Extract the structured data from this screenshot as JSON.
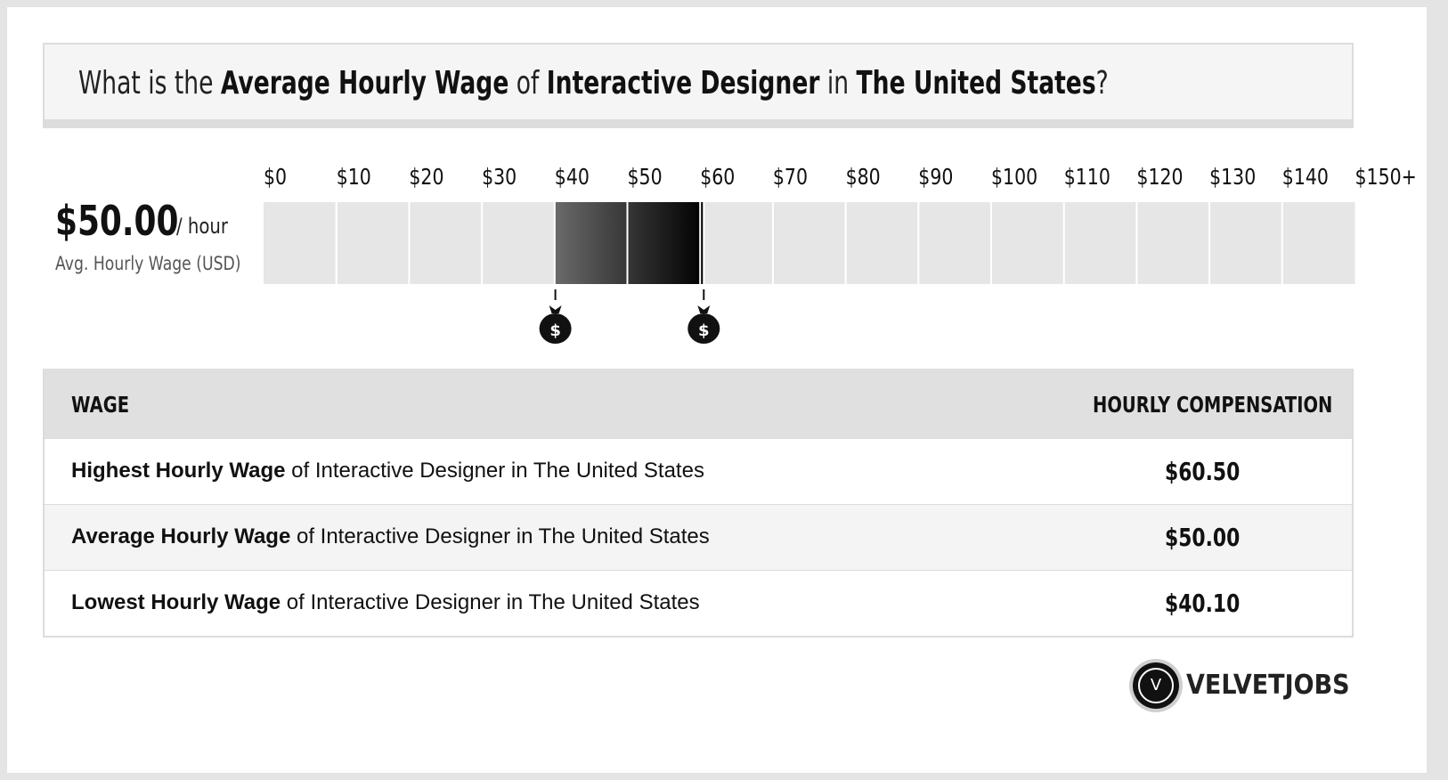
{
  "title": {
    "p1": "What is the ",
    "b1": "Average Hourly Wage",
    "p2": " of ",
    "b2": "Interactive Designer",
    "p3": " in ",
    "b3": "The United States",
    "p4": "?"
  },
  "average": {
    "value": "$50.00",
    "unit": "/ hour",
    "caption": "Avg. Hourly Wage (USD)"
  },
  "chart_data": {
    "type": "bar",
    "ticks": [
      "$0",
      "$10",
      "$20",
      "$30",
      "$40",
      "$50",
      "$60",
      "$70",
      "$80",
      "$90",
      "$100",
      "$110",
      "$120",
      "$130",
      "$140",
      "$150+"
    ],
    "range": [
      0,
      150
    ],
    "low": 40.1,
    "average": 50.0,
    "high": 60.5,
    "low_marker_label": "$",
    "high_marker_label": "$"
  },
  "table": {
    "col_wage": "WAGE",
    "col_comp": "HOURLY COMPENSATION",
    "rows": [
      {
        "bold": "Highest Hourly Wage",
        "rest": " of Interactive Designer in The United States",
        "value": "$60.50"
      },
      {
        "bold": "Average Hourly Wage",
        "rest": " of Interactive Designer in The United States",
        "value": "$50.00"
      },
      {
        "bold": "Lowest Hourly Wage",
        "rest": " of Interactive Designer in The United States",
        "value": "$40.10"
      }
    ]
  },
  "brand": {
    "logo_letter": "V",
    "name": "VELVETJOBS"
  },
  "colors": {
    "frame": "#e4e4e4",
    "bar_bg": "#e6e6e6",
    "fill_dark": "#000000",
    "fill_light": "#6a6a6a"
  }
}
